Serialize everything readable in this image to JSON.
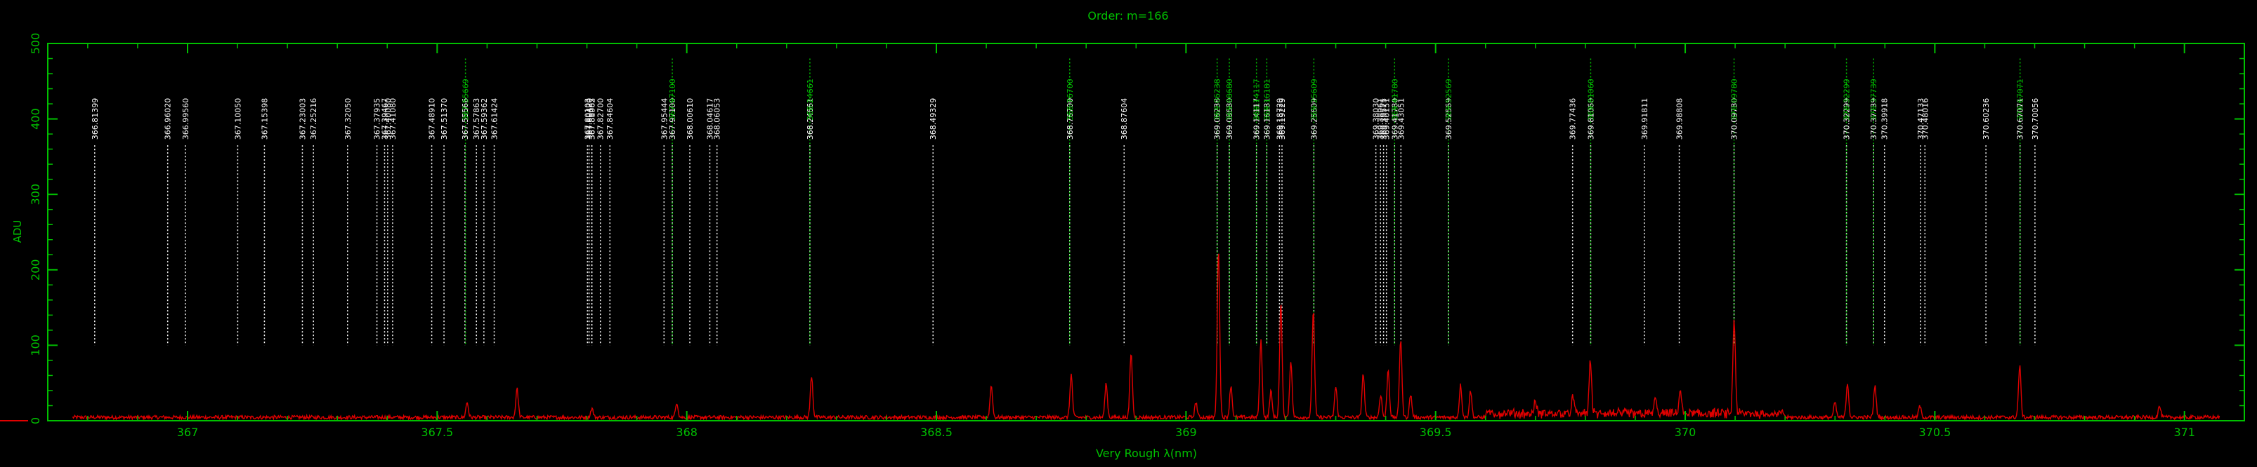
{
  "chart_data": {
    "type": "line",
    "title": "Order: m=166",
    "xlabel": "Very Rough λ(nm)",
    "ylabel": "ADU",
    "xlim": [
      366.72,
      371.12
    ],
    "ylim": [
      0,
      500
    ],
    "x_ticks": [
      "367",
      "367.5",
      "368",
      "368.5",
      "369",
      "369.5",
      "370",
      "370.5",
      "371"
    ],
    "x_tick_values": [
      367,
      367.5,
      368,
      368.5,
      369,
      369.5,
      370,
      370.5,
      371
    ],
    "y_ticks": [
      "0",
      "100",
      "200",
      "300",
      "400",
      "500"
    ],
    "y_tick_values": [
      0,
      100,
      200,
      300,
      400,
      500
    ],
    "grid": false,
    "colors": {
      "axes": "#00c000",
      "spectrum": "#e00000",
      "white_lines": "#ffffff",
      "green_lines": "#00c000"
    },
    "line_start_adu": 100,
    "line_end_adu": 365,
    "white_lines": [
      366.81399,
      366.9602,
      366.9956,
      367.1005,
      367.15398,
      367.23003,
      367.25216,
      367.3205,
      367.37935,
      367.39467,
      367.4008,
      367.4108,
      367.4891,
      367.5137,
      367.55566,
      367.57863,
      367.59362,
      367.61424,
      367.80103,
      367.8042,
      367.80962,
      367.81003,
      367.827,
      367.84604,
      367.95444,
      367.971,
      368.0061,
      368.04617,
      368.06053,
      368.24661,
      368.49329,
      368.767,
      368.87604,
      369.06238,
      369.0868,
      369.14117,
      369.16181,
      369.1872,
      369.19229,
      369.25609,
      369.3803,
      369.38961,
      369.39575,
      369.40151,
      369.4178,
      369.43051,
      369.52569,
      369.77436,
      369.8106,
      369.91811,
      369.98808,
      370.0978,
      370.32299,
      370.37739,
      370.39918,
      370.47133,
      370.48016,
      370.60236,
      370.67071,
      370.70056
    ],
    "white_labels": [
      "366.81399",
      "366.96020",
      "366.99560",
      "367.10050",
      "367.15398",
      "367.23003",
      "367.25216",
      "367.32050",
      "367.37935",
      "367.39467",
      "367.40080",
      "367.41080",
      "367.48910",
      "367.51370",
      "367.55566",
      "367.57863",
      "367.59362",
      "367.61424",
      "367.80103",
      "367.80420",
      "367.80962",
      "367.81003",
      "367.82700",
      "367.84604",
      "367.95444",
      "367.97100",
      "368.00610",
      "368.04617",
      "368.06053",
      "368.24661",
      "368.49329",
      "368.76700",
      "368.87604",
      "369.06238",
      "369.08680",
      "369.14117",
      "369.16181",
      "369.18720",
      "369.19229",
      "369.25609",
      "369.38030",
      "369.38961",
      "369.39575",
      "369.40151",
      "369.41780",
      "369.43051",
      "369.52569",
      "369.77436",
      "369.81060",
      "369.91811",
      "369.98808",
      "370.09780",
      "370.32299",
      "370.37739",
      "370.39918",
      "370.47133",
      "370.48016",
      "370.60236",
      "370.67071",
      "370.70056"
    ],
    "green_lines": [
      367.55669,
      367.971,
      368.24661,
      368.767,
      369.06238,
      369.0868,
      369.14117,
      369.16181,
      369.25609,
      369.4178,
      369.52569,
      369.8106,
      370.0978,
      370.32299,
      370.37739,
      370.67071
    ],
    "green_labels": [
      "367.55669",
      "367.97100",
      "368.24661",
      "368.76700",
      "369.06238",
      "369.08680",
      "369.14117",
      "369.16181",
      "369.25609",
      "369.41780",
      "369.52569",
      "369.81060",
      "370.09780",
      "370.32299",
      "370.37739",
      "370.67071"
    ],
    "peaks": [
      {
        "x": 367.56,
        "y": 20
      },
      {
        "x": 367.66,
        "y": 38
      },
      {
        "x": 367.81,
        "y": 12
      },
      {
        "x": 367.98,
        "y": 20
      },
      {
        "x": 368.25,
        "y": 55
      },
      {
        "x": 368.61,
        "y": 42
      },
      {
        "x": 368.77,
        "y": 57
      },
      {
        "x": 368.84,
        "y": 45
      },
      {
        "x": 368.89,
        "y": 85
      },
      {
        "x": 369.02,
        "y": 20
      },
      {
        "x": 369.065,
        "y": 222
      },
      {
        "x": 369.09,
        "y": 42
      },
      {
        "x": 369.15,
        "y": 103
      },
      {
        "x": 369.17,
        "y": 35
      },
      {
        "x": 369.19,
        "y": 150
      },
      {
        "x": 369.21,
        "y": 75
      },
      {
        "x": 369.255,
        "y": 142
      },
      {
        "x": 369.3,
        "y": 40
      },
      {
        "x": 369.355,
        "y": 58
      },
      {
        "x": 369.39,
        "y": 30
      },
      {
        "x": 369.405,
        "y": 63
      },
      {
        "x": 369.43,
        "y": 104
      },
      {
        "x": 369.45,
        "y": 30
      },
      {
        "x": 369.55,
        "y": 43
      },
      {
        "x": 369.57,
        "y": 35
      },
      {
        "x": 369.7,
        "y": 15
      },
      {
        "x": 369.775,
        "y": 22
      },
      {
        "x": 369.81,
        "y": 70
      },
      {
        "x": 369.94,
        "y": 20
      },
      {
        "x": 369.99,
        "y": 32
      },
      {
        "x": 370.098,
        "y": 123
      },
      {
        "x": 370.3,
        "y": 20
      },
      {
        "x": 370.325,
        "y": 45
      },
      {
        "x": 370.38,
        "y": 42
      },
      {
        "x": 370.47,
        "y": 15
      },
      {
        "x": 370.67,
        "y": 68
      },
      {
        "x": 370.95,
        "y": 15
      }
    ]
  }
}
